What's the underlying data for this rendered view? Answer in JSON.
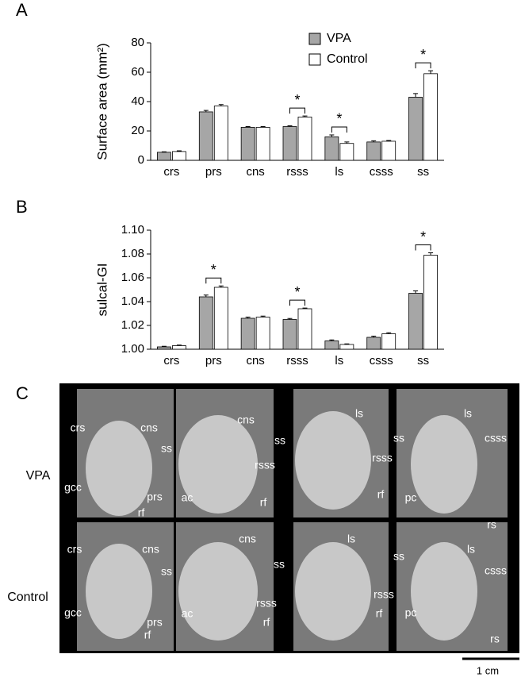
{
  "chart_data": [
    {
      "type": "bar",
      "panel_label": "A",
      "y_label": "Surface area (mm²)",
      "categories": [
        "crs",
        "prs",
        "cns",
        "rsss",
        "ls",
        "csss",
        "ss"
      ],
      "series": [
        {
          "name": "VPA",
          "color": "#a6a6a6",
          "values": [
            5.5,
            33,
            22.5,
            23,
            16,
            12.5,
            43
          ],
          "errors": [
            0.3,
            1,
            0.5,
            0.5,
            1.3,
            0.8,
            2.5
          ]
        },
        {
          "name": "Control",
          "color": "#ffffff",
          "values": [
            6,
            37,
            22.5,
            29.5,
            11.5,
            13,
            59
          ],
          "errors": [
            0.5,
            1,
            0.5,
            0.7,
            1,
            0.5,
            2
          ]
        }
      ],
      "ylim": [
        0,
        80
      ],
      "yticks": [
        0,
        20,
        40,
        60,
        80
      ],
      "legend": "top-right",
      "significant": [
        false,
        false,
        false,
        true,
        true,
        false,
        true
      ],
      "significance_label": "*"
    },
    {
      "type": "bar",
      "panel_label": "B",
      "y_label": "sulcal-GI",
      "categories": [
        "crs",
        "prs",
        "cns",
        "rsss",
        "ls",
        "csss",
        "ss"
      ],
      "series": [
        {
          "color": "#a6a6a6",
          "values": [
            1.002,
            1.044,
            1.026,
            1.025,
            1.007,
            1.01,
            1.047
          ],
          "errors": [
            0.0005,
            0.0015,
            0.001,
            0.0008,
            0.0008,
            0.001,
            0.002
          ]
        },
        {
          "color": "#ffffff",
          "values": [
            1.003,
            1.052,
            1.027,
            1.034,
            1.004,
            1.013,
            1.079
          ],
          "errors": [
            0.0005,
            0.0012,
            0.0008,
            0.0006,
            0.0005,
            0.0008,
            0.002
          ]
        }
      ],
      "ylim": [
        1,
        1.1
      ],
      "yticks": [
        {
          "value": 1,
          "label": "1.00"
        },
        1.02,
        1.04,
        1.06,
        1.08,
        {
          "value": 1.1,
          "label": "1.10"
        }
      ],
      "significant": [
        false,
        true,
        false,
        true,
        false,
        false,
        true
      ],
      "significance_label": "*"
    }
  ],
  "panel_c": {
    "panel_label": "C",
    "rows": [
      "VPA",
      "Control"
    ],
    "scale_bar": "1 cm",
    "labels": [
      "crs",
      "cns",
      "gcc",
      "prs",
      "rf",
      "ss",
      "cns",
      "rsss",
      "ac",
      "rf",
      "ls",
      "ss",
      "rsss",
      "rf",
      "ls",
      "ss",
      "csss",
      "pc",
      "rs",
      "crs",
      "cns",
      "gcc",
      "prs",
      "rf",
      "ss",
      "cns",
      "rsss",
      "ac",
      "rf",
      "ls",
      "ss",
      "rsss",
      "rf",
      "ls",
      "ss",
      "csss",
      "pc",
      "rs"
    ]
  }
}
